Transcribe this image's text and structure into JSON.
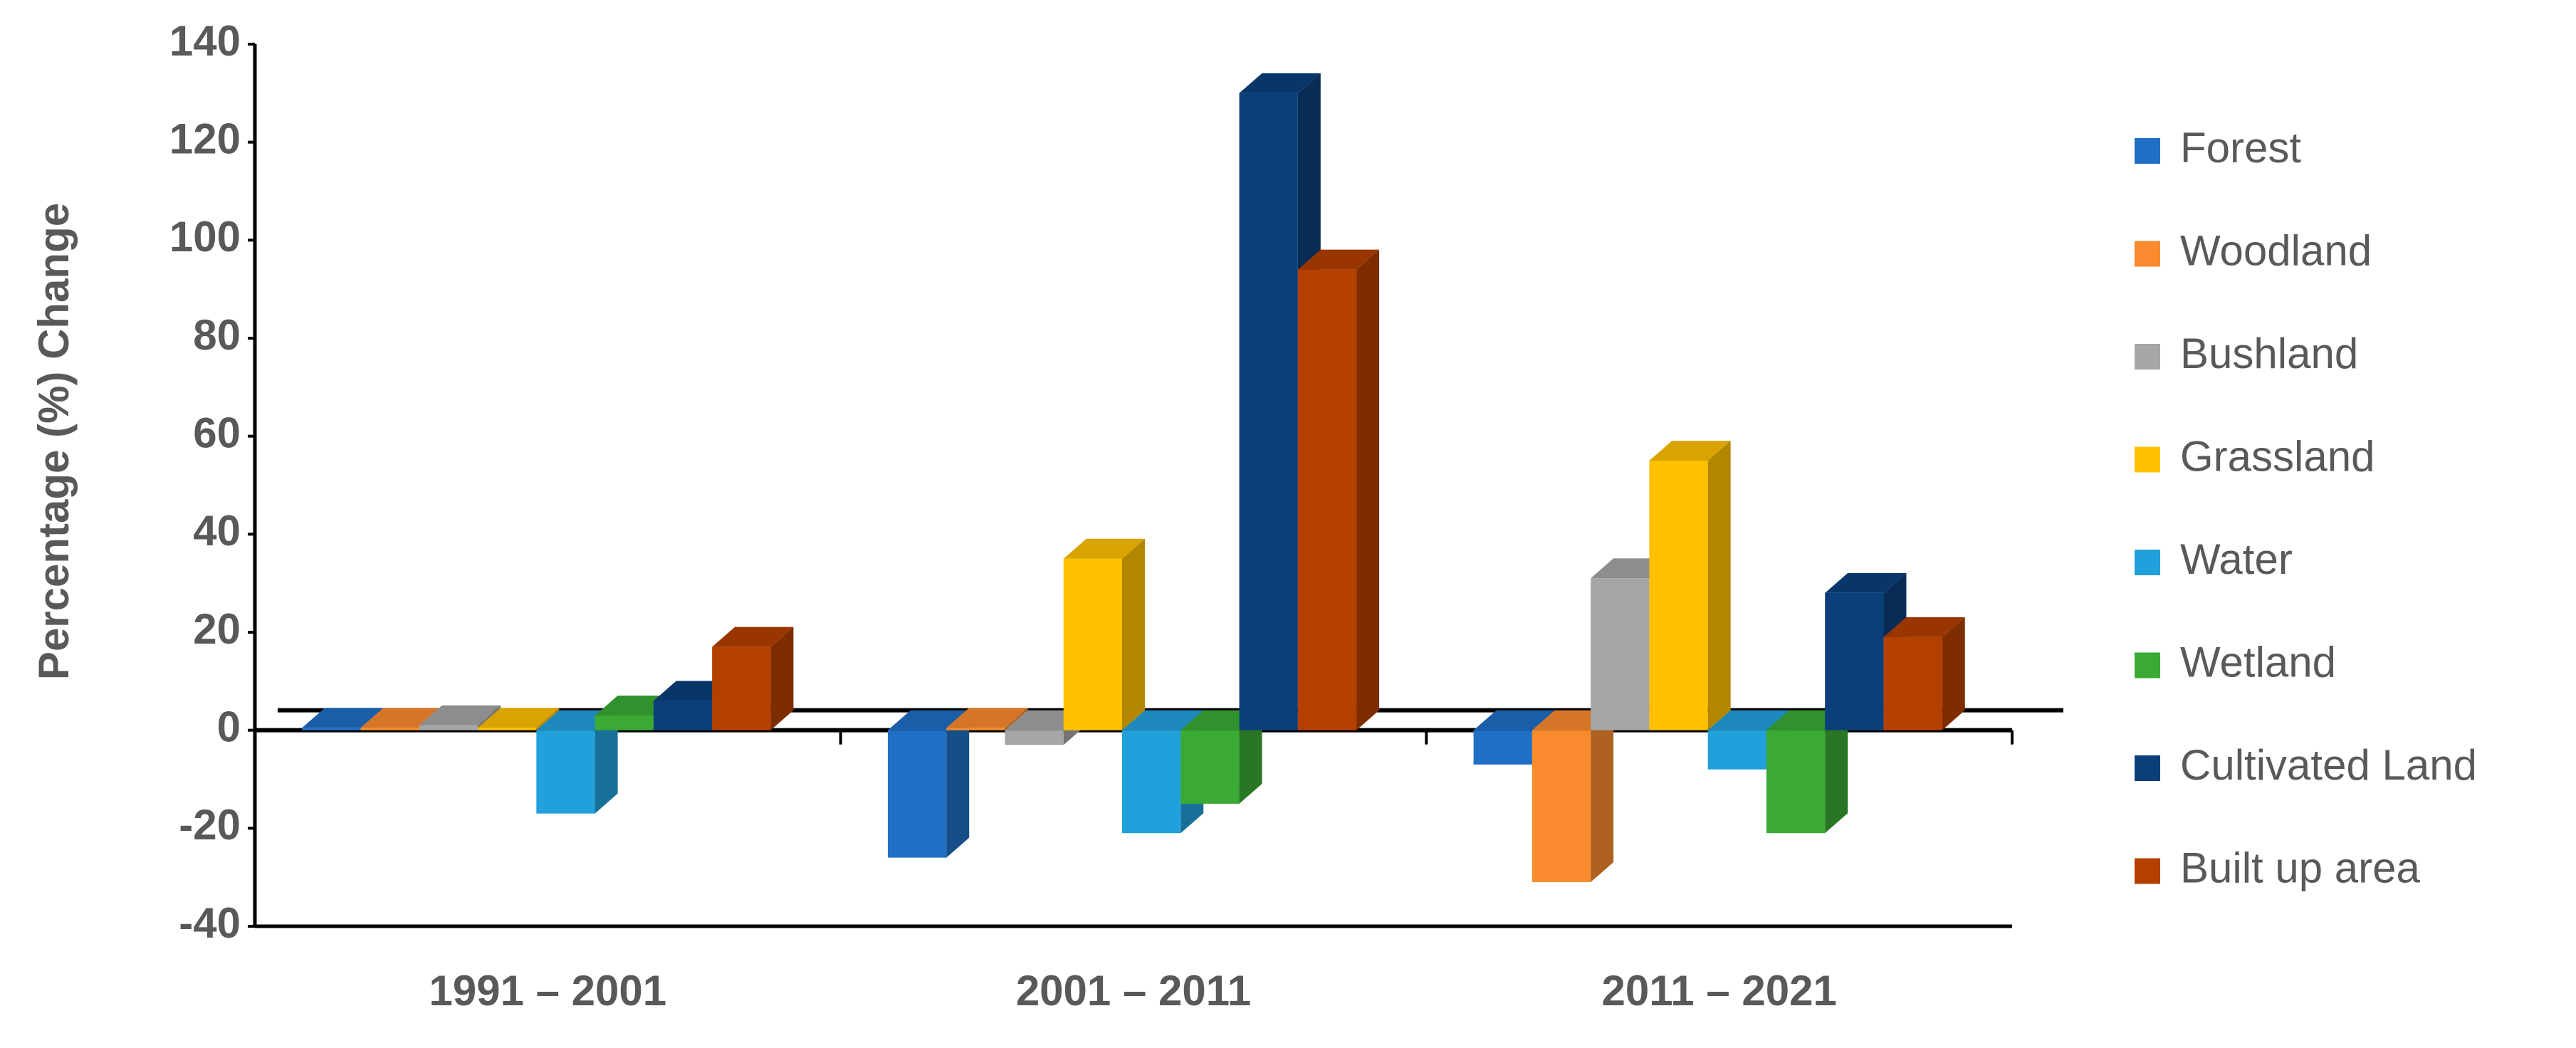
{
  "chart_data": {
    "type": "bar3d",
    "ylabel": "Percentage (%) Change",
    "categories": [
      "1991 – 2001",
      "2001 – 2011",
      "2011 – 2021"
    ],
    "series": [
      {
        "name": "Forest",
        "color": "#1f6fc5",
        "values": [
          0.5,
          -26,
          -7
        ]
      },
      {
        "name": "Woodland",
        "color": "#f98a2e",
        "values": [
          0.5,
          0.5,
          -31
        ]
      },
      {
        "name": "Bushland",
        "color": "#a6a6a6",
        "values": [
          1,
          -3,
          31
        ]
      },
      {
        "name": "Grassland",
        "color": "#ffc000",
        "values": [
          0.5,
          35,
          55
        ]
      },
      {
        "name": "Water",
        "color": "#21a0dc",
        "values": [
          -17,
          -21,
          -8
        ]
      },
      {
        "name": "Wetland",
        "color": "#3aaa35",
        "values": [
          3,
          -15,
          -21
        ]
      },
      {
        "name": "Cultivated Land",
        "color": "#0b3f7a",
        "values": [
          6,
          130,
          28
        ]
      },
      {
        "name": "Built up area",
        "color": "#b44000",
        "values": [
          17,
          94,
          19
        ]
      }
    ],
    "ylim": [
      -40,
      140
    ],
    "yticks": [
      -40,
      -20,
      0,
      20,
      40,
      60,
      80,
      100,
      120,
      140
    ],
    "legend": "right"
  }
}
